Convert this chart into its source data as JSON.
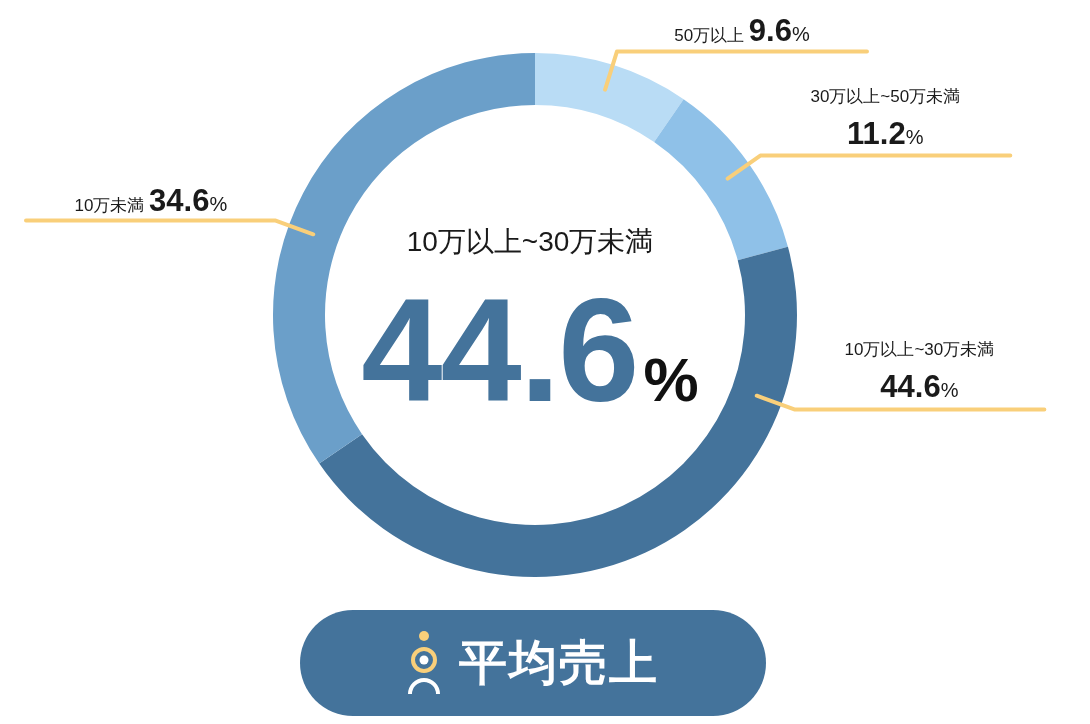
{
  "chart_data": {
    "type": "donut",
    "title": "平均売上",
    "categories": [
      "50万以上",
      "30万以上~50万未満",
      "10万以上~30万未満",
      "10万未満"
    ],
    "values": [
      9.6,
      11.2,
      44.6,
      34.6
    ],
    "colors": [
      "#b9dcf5",
      "#8fc1e8",
      "#44739b",
      "#6b9fc9"
    ],
    "value_labels": [
      "9.6%",
      "11.2%",
      "44.6%",
      "34.6%"
    ],
    "annotations": [
      "10万以上~30万未満",
      "44.6%"
    ]
  }
}
